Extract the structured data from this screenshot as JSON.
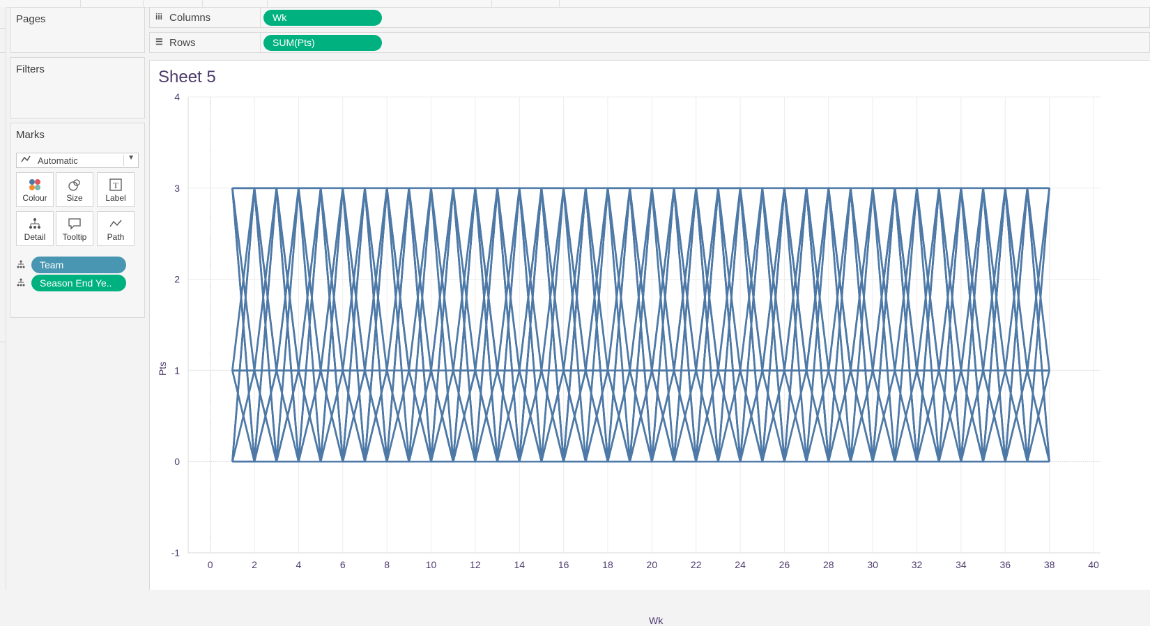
{
  "shelves": {
    "columns": {
      "icon": "columns-icon",
      "label": "Columns",
      "pill": "Wk"
    },
    "rows": {
      "icon": "rows-icon",
      "label": "Rows",
      "pill": "SUM(Pts)"
    }
  },
  "cards": {
    "pages": "Pages",
    "filters": "Filters",
    "marks": "Marks"
  },
  "marks": {
    "mark_type": "Automatic",
    "buttons": [
      "Colour",
      "Size",
      "Label",
      "Detail",
      "Tooltip",
      "Path"
    ],
    "pills": [
      {
        "label": "Team",
        "icon": "detail-icon",
        "color": "#4996b2"
      },
      {
        "label": "Season End Ye..",
        "icon": "detail-icon",
        "color": "#00b180"
      }
    ]
  },
  "sheet": {
    "title": "Sheet 5"
  },
  "colors": {
    "line": "#4e79a7",
    "dimension_pill": "#4996b2",
    "measure_pill": "#00b180",
    "title": "#4b3a6b"
  },
  "chart_data": {
    "type": "line",
    "xlabel": "Wk",
    "ylabel": "Pts",
    "xlim": [
      -1,
      40
    ],
    "ylim": [
      -1,
      4
    ],
    "x_ticks": [
      0,
      2,
      4,
      6,
      8,
      10,
      12,
      14,
      16,
      18,
      20,
      22,
      24,
      26,
      28,
      30,
      32,
      34,
      36,
      38,
      40
    ],
    "y_ticks": [
      -1,
      0,
      1,
      2,
      3,
      4
    ],
    "grid": true,
    "x_range_of_data": [
      1,
      38
    ],
    "possible_values": [
      0,
      1,
      3
    ],
    "note_series": "many overlapping Team/Season series, each a weekly points line with values 0, 1 or 3"
  }
}
